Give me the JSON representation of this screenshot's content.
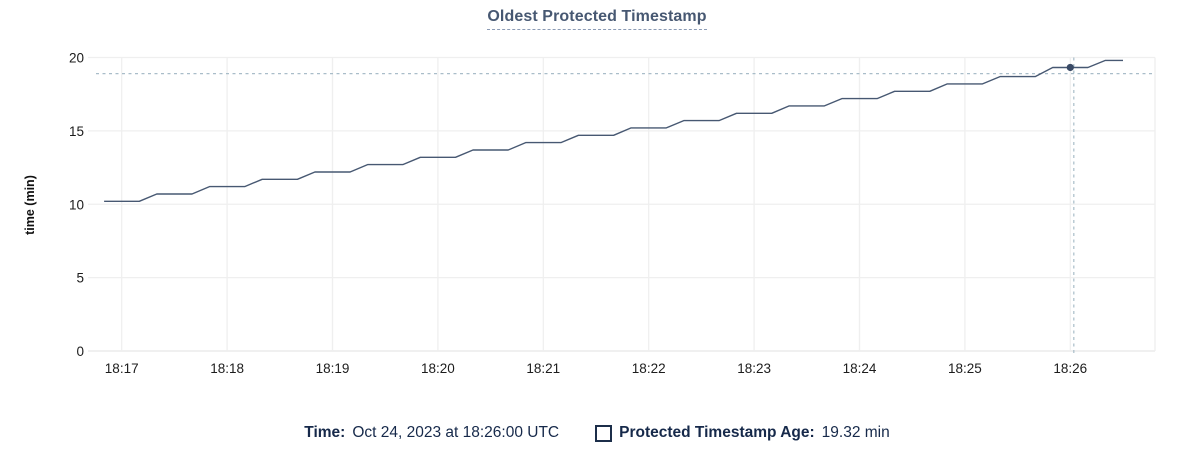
{
  "chart_data": {
    "type": "line",
    "title": "Oldest Protected Timestamp",
    "xlabel": "",
    "ylabel": "time (min)",
    "ylim": [
      0,
      20
    ],
    "yticks": [
      0,
      5,
      10,
      15,
      20
    ],
    "xticks": [
      "18:17",
      "18:18",
      "18:19",
      "18:20",
      "18:21",
      "18:22",
      "18:23",
      "18:24",
      "18:25",
      "18:26"
    ],
    "grid": "on",
    "legend_position": "bottom",
    "series": [
      {
        "name": "Protected Timestamp Age",
        "color": "#475872",
        "points": [
          [
            "18:16:50",
            10.2
          ],
          [
            "18:17:00",
            10.2
          ],
          [
            "18:17:10",
            10.2
          ],
          [
            "18:17:20",
            10.7
          ],
          [
            "18:17:30",
            10.7
          ],
          [
            "18:17:40",
            10.7
          ],
          [
            "18:17:50",
            11.2
          ],
          [
            "18:18:00",
            11.2
          ],
          [
            "18:18:10",
            11.2
          ],
          [
            "18:18:20",
            11.7
          ],
          [
            "18:18:30",
            11.7
          ],
          [
            "18:18:40",
            11.7
          ],
          [
            "18:18:50",
            12.2
          ],
          [
            "18:19:00",
            12.2
          ],
          [
            "18:19:10",
            12.2
          ],
          [
            "18:19:20",
            12.7
          ],
          [
            "18:19:30",
            12.7
          ],
          [
            "18:19:40",
            12.7
          ],
          [
            "18:19:50",
            13.2
          ],
          [
            "18:20:00",
            13.2
          ],
          [
            "18:20:10",
            13.2
          ],
          [
            "18:20:20",
            13.7
          ],
          [
            "18:20:30",
            13.7
          ],
          [
            "18:20:40",
            13.7
          ],
          [
            "18:20:50",
            14.2
          ],
          [
            "18:21:00",
            14.2
          ],
          [
            "18:21:10",
            14.2
          ],
          [
            "18:21:20",
            14.7
          ],
          [
            "18:21:30",
            14.7
          ],
          [
            "18:21:40",
            14.7
          ],
          [
            "18:21:50",
            15.2
          ],
          [
            "18:22:00",
            15.2
          ],
          [
            "18:22:10",
            15.2
          ],
          [
            "18:22:20",
            15.7
          ],
          [
            "18:22:30",
            15.7
          ],
          [
            "18:22:40",
            15.7
          ],
          [
            "18:22:50",
            16.2
          ],
          [
            "18:23:00",
            16.2
          ],
          [
            "18:23:10",
            16.2
          ],
          [
            "18:23:20",
            16.7
          ],
          [
            "18:23:30",
            16.7
          ],
          [
            "18:23:40",
            16.7
          ],
          [
            "18:23:50",
            17.2
          ],
          [
            "18:24:00",
            17.2
          ],
          [
            "18:24:10",
            17.2
          ],
          [
            "18:24:20",
            17.7
          ],
          [
            "18:24:30",
            17.7
          ],
          [
            "18:24:40",
            17.7
          ],
          [
            "18:24:50",
            18.2
          ],
          [
            "18:25:00",
            18.2
          ],
          [
            "18:25:10",
            18.2
          ],
          [
            "18:25:20",
            18.7
          ],
          [
            "18:25:30",
            18.7
          ],
          [
            "18:25:40",
            18.7
          ],
          [
            "18:25:50",
            19.32
          ],
          [
            "18:26:00",
            19.32
          ],
          [
            "18:26:10",
            19.32
          ],
          [
            "18:26:20",
            19.8
          ],
          [
            "18:26:30",
            19.8
          ]
        ]
      }
    ],
    "cursor": {
      "time": "18:26:02",
      "y_value": 18.9,
      "snapped_point": {
        "time": "18:26:00",
        "value": 19.32
      },
      "crosshair_color": "#a9bdc9",
      "dot_color": "#394a66"
    }
  },
  "legend": {
    "time_label": "Time:",
    "time_value": "Oct 24, 2023 at 18:26:00 UTC",
    "series_label": "Protected Timestamp Age:",
    "series_value": "19.32 min"
  },
  "colors": {
    "title": "#475872",
    "line": "#475872",
    "grid": "#efefef",
    "zero_line": "#e6e6e6",
    "footer_text": "#16294a"
  }
}
